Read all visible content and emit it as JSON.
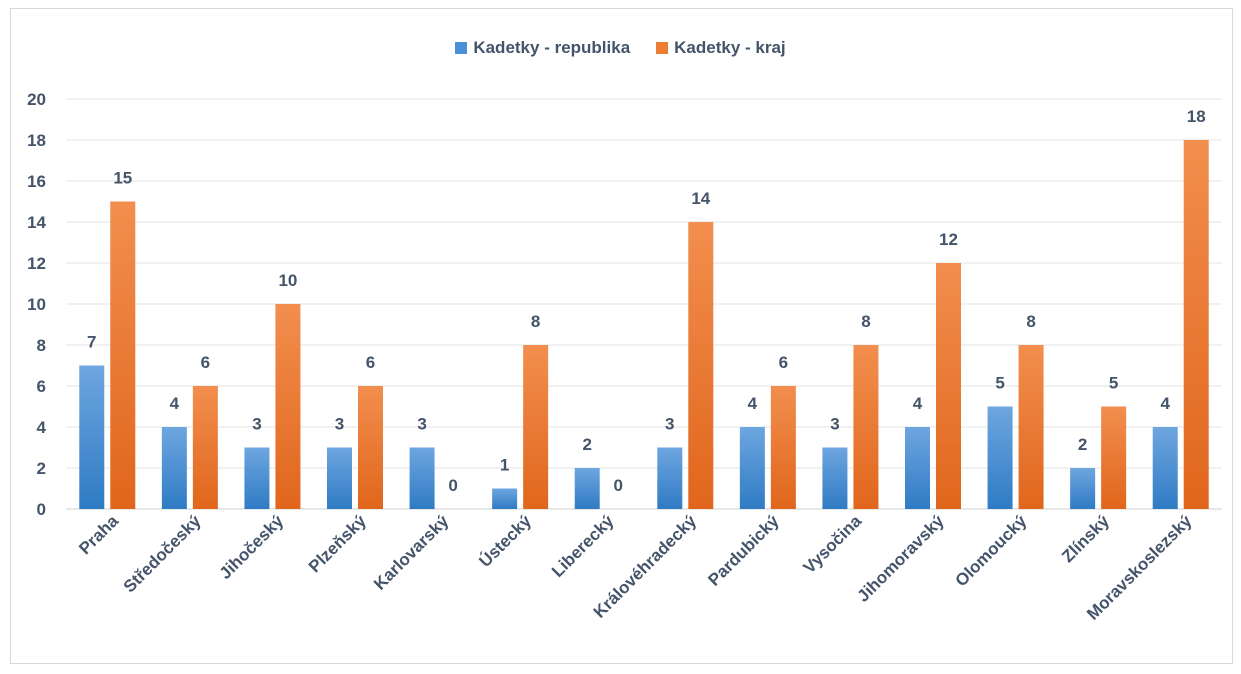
{
  "chart_data": {
    "type": "bar",
    "categories": [
      "Praha",
      "Středočeský",
      "Jihočeský",
      "Plzeňský",
      "Karlovarský",
      "Ústecký",
      "Liberecký",
      "Královéhradecký",
      "Pardubický",
      "Vysočina",
      "Jihomoravský",
      "Olomoucký",
      "Zlínský",
      "Moravskoslezský"
    ],
    "series": [
      {
        "name": "Kadetky - republika",
        "values": [
          7,
          4,
          3,
          3,
          3,
          1,
          2,
          3,
          4,
          3,
          4,
          5,
          2,
          4
        ],
        "color": "#4a90d9"
      },
      {
        "name": "Kadetky - kraj",
        "values": [
          15,
          6,
          10,
          6,
          0,
          8,
          0,
          14,
          6,
          8,
          12,
          8,
          5,
          18
        ],
        "color": "#ed7d31"
      }
    ],
    "ylim": [
      0,
      20
    ],
    "yticks": [
      0,
      2,
      4,
      6,
      8,
      10,
      12,
      14,
      16,
      18,
      20
    ],
    "grid": true,
    "legend": "top-center",
    "title": "",
    "xlabel": "",
    "ylabel": ""
  }
}
